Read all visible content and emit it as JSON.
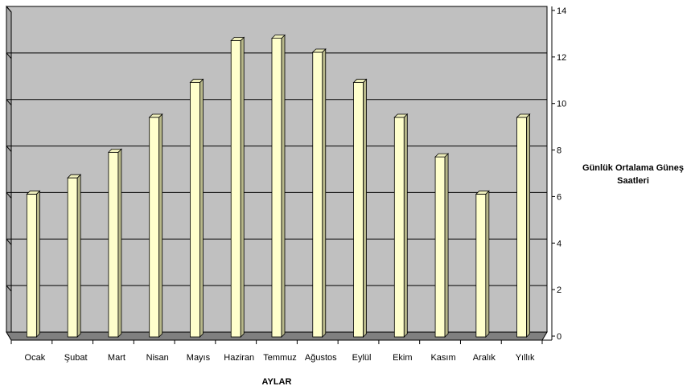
{
  "chart_data": {
    "type": "bar",
    "categories": [
      "Ocak",
      "Şubat",
      "Mart",
      "Nisan",
      "Mayıs",
      "Haziran",
      "Temmuz",
      "Ağustos",
      "Eylül",
      "Ekim",
      "Kasım",
      "Aralık",
      "Yıllık"
    ],
    "values": [
      6.0,
      6.7,
      7.8,
      9.3,
      10.8,
      12.6,
      12.7,
      12.1,
      10.8,
      9.3,
      7.6,
      6.0,
      9.3
    ],
    "xlabel": "AYLAR",
    "ylabel": "Günlük Ortalama Güneş Saatleri",
    "ylim": [
      0,
      14
    ],
    "yticks": [
      0,
      2,
      4,
      6,
      8,
      10,
      12,
      14
    ],
    "y_axis_side": "right",
    "grid": true,
    "style": "3d-column",
    "colors": {
      "bar_front": "#FFFFCC",
      "bar_side": "#B8B88A",
      "bar_top": "#EEEEBB",
      "back_wall": "#C0C0C0",
      "floor": "#808080",
      "gridline": "#000000"
    }
  }
}
